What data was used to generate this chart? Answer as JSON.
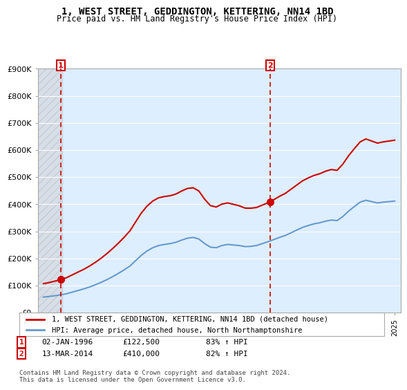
{
  "title": "1, WEST STREET, GEDDINGTON, KETTERING, NN14 1BD",
  "subtitle": "Price paid vs. HM Land Registry's House Price Index (HPI)",
  "legend_line1": "1, WEST STREET, GEDDINGTON, KETTERING, NN14 1BD (detached house)",
  "legend_line2": "HPI: Average price, detached house, North Northamptonshire",
  "transaction1_date": 1996.01,
  "transaction1_price": 122500,
  "transaction1_label": "1",
  "transaction2_date": 2014.21,
  "transaction2_price": 410000,
  "transaction2_label": "2",
  "annotation1": "1    02-JAN-1996    £122,500    83% ↑ HPI",
  "annotation2": "2    13-MAR-2014    £410,000    82% ↑ HPI",
  "footer": "Contains HM Land Registry data © Crown copyright and database right 2024.\nThis data is licensed under the Open Government Licence v3.0.",
  "ylim": [
    0,
    900000
  ],
  "xlim": [
    1994.0,
    2025.5
  ],
  "property_color": "#cc0000",
  "hpi_color": "#6699cc",
  "background_plot": "#ddeeff",
  "background_hatch": "#cccccc",
  "grid_color": "#ffffff",
  "vline_color": "#cc0000"
}
